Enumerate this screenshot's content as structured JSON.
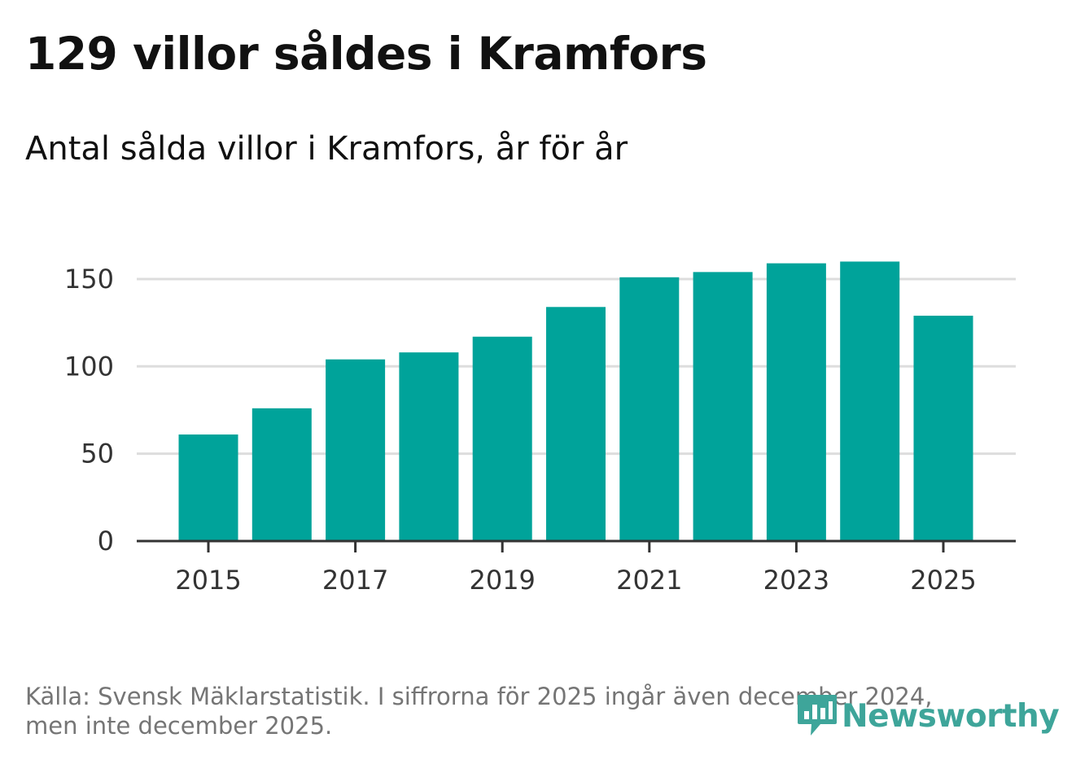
{
  "title": "129 villor såldes i Kramfors",
  "subtitle": "Antal sålda villor i Kramfors, år för år",
  "source": {
    "line1": "Källa: Svensk Mäklarstatistik. I siffrorna för 2025 ingår även december 2024,",
    "line2": "men inte december 2025."
  },
  "brand": {
    "name": "Newsworthy",
    "icon": "bar-chart-speech-bubble-icon",
    "color": "#3ea59a"
  },
  "colors": {
    "bar": "#00a39a",
    "grid": "#dddddd",
    "axis": "#333333",
    "text": "#111111",
    "muted": "#757575"
  },
  "chart_data": {
    "type": "bar",
    "title": "129 villor såldes i Kramfors",
    "subtitle": "Antal sålda villor i Kramfors, år för år",
    "categories": [
      "2015",
      "2016",
      "2017",
      "2018",
      "2019",
      "2020",
      "2021",
      "2022",
      "2023",
      "2024",
      "2025"
    ],
    "values": [
      61,
      76,
      104,
      108,
      117,
      134,
      151,
      154,
      159,
      160,
      129
    ],
    "ylim": [
      0,
      170
    ],
    "yticks": [
      0,
      50,
      100,
      150
    ],
    "xtick_labels": [
      "2015",
      "2017",
      "2019",
      "2021",
      "2023",
      "2025"
    ],
    "xlabel": "",
    "ylabel": "",
    "grid": true,
    "legend": "none"
  }
}
